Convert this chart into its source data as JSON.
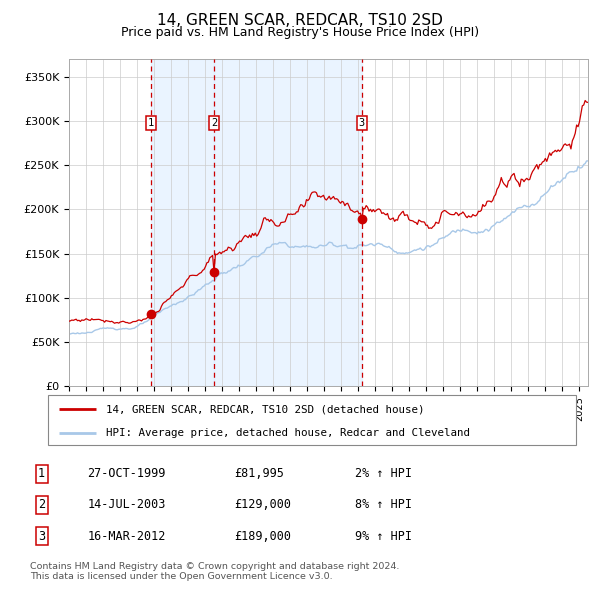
{
  "title": "14, GREEN SCAR, REDCAR, TS10 2SD",
  "subtitle": "Price paid vs. HM Land Registry's House Price Index (HPI)",
  "title_fontsize": 11,
  "subtitle_fontsize": 9,
  "ylabel_ticks": [
    "£0",
    "£50K",
    "£100K",
    "£150K",
    "£200K",
    "£250K",
    "£300K",
    "£350K"
  ],
  "ytick_vals": [
    0,
    50000,
    100000,
    150000,
    200000,
    250000,
    300000,
    350000
  ],
  "ylim": [
    0,
    370000
  ],
  "xlim_start": 1995.0,
  "xlim_end": 2025.5,
  "sale_dates": [
    1999.82,
    2003.54,
    2012.21
  ],
  "sale_prices": [
    81995,
    129000,
    189000
  ],
  "sale_labels": [
    "1",
    "2",
    "3"
  ],
  "vline_dates": [
    1999.82,
    2003.54,
    2012.21
  ],
  "legend_line1": "14, GREEN SCAR, REDCAR, TS10 2SD (detached house)",
  "legend_line2": "HPI: Average price, detached house, Redcar and Cleveland",
  "table_data": [
    [
      "1",
      "27-OCT-1999",
      "£81,995",
      "2% ↑ HPI"
    ],
    [
      "2",
      "14-JUL-2003",
      "£129,000",
      "8% ↑ HPI"
    ],
    [
      "3",
      "16-MAR-2012",
      "£189,000",
      "9% ↑ HPI"
    ]
  ],
  "footer": "Contains HM Land Registry data © Crown copyright and database right 2024.\nThis data is licensed under the Open Government Licence v3.0.",
  "hpi_line_color": "#a8c8e8",
  "price_line_color": "#cc0000",
  "sale_dot_color": "#cc0000",
  "vline_color": "#cc0000",
  "bg_shade_color": "#ddeeff",
  "grid_color": "#cccccc",
  "border_color": "#aaaaaa",
  "fig_width": 6.0,
  "fig_height": 5.9
}
